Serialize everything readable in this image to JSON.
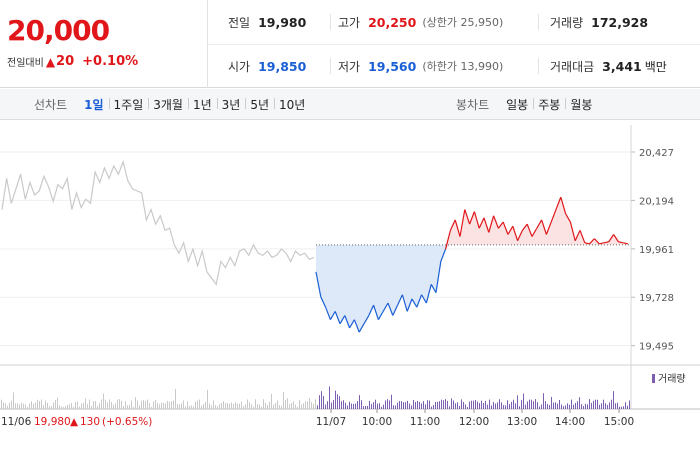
{
  "summary": {
    "price": "20,000",
    "change_label": "전일대비",
    "change_arrow": "▲",
    "change_value": "20",
    "change_pct": "+0.10%",
    "prev_close_label": "전일",
    "prev_close": "19,980",
    "high_label": "고가",
    "high": "20,250",
    "upper_limit_label": "(상한가 25,950)",
    "volume_label": "거래량",
    "volume": "172,928",
    "open_label": "시가",
    "open": "19,850",
    "low_label": "저가",
    "low": "19,560",
    "lower_limit_label": "(하한가 13,990)",
    "amount_label": "거래대금",
    "amount": "3,441",
    "amount_unit": "백만"
  },
  "tabs": {
    "line_label": "선차트",
    "line_items": [
      "1일",
      "1주일",
      "3개월",
      "1년",
      "3년",
      "5년",
      "10년"
    ],
    "line_active": 0,
    "candle_label": "봉차트",
    "candle_items": [
      "일봉",
      "주봉",
      "월봉"
    ]
  },
  "colors": {
    "up": "#e0161a",
    "down": "#1a5fd6",
    "prev_day": "#c9c9c9",
    "up_fill": "#fbe3e4",
    "down_fill": "#dde8f8",
    "volume": "#7d5fb2",
    "volume_prev": "#c9c9c9"
  },
  "chart_data": {
    "type": "line",
    "y_ticks": [
      20427,
      20194,
      19961,
      19728,
      19495
    ],
    "ylim": [
      19450,
      20480
    ],
    "reference_line": 19980,
    "x_ticks": [
      "11/07",
      "10:00",
      "11:00",
      "12:00",
      "13:00",
      "14:00",
      "15:00"
    ],
    "prev_day_label": "11/06",
    "prev_day_info": {
      "close": "19,980",
      "arrow": "▲",
      "change": "130",
      "pct": "(+0.65%)"
    },
    "volume_legend": "거래량",
    "series": [
      {
        "name": "11/06",
        "values": [
          20150,
          20300,
          20180,
          20250,
          20320,
          20200,
          20280,
          20220,
          20240,
          20310,
          20260,
          20190,
          20270,
          20250,
          20300,
          20150,
          20230,
          20160,
          20200,
          20180,
          20330,
          20280,
          20350,
          20300,
          20360,
          20320,
          20380,
          20290,
          20250,
          20240,
          20230,
          20100,
          20150,
          20080,
          20120,
          20050,
          20060,
          19980,
          19940,
          19990,
          19900,
          19960,
          19880,
          19950,
          19850,
          19820,
          19790,
          19900,
          19870,
          19920,
          19880,
          19950,
          19960,
          19930,
          19980,
          19940,
          19930,
          19950,
          19920,
          19930,
          19960,
          19940,
          19900,
          19950,
          19930,
          19940,
          19910,
          19920
        ]
      },
      {
        "name": "11/07",
        "values": [
          19850,
          19730,
          19680,
          19620,
          19660,
          19600,
          19640,
          19580,
          19620,
          19560,
          19600,
          19640,
          19690,
          19620,
          19660,
          19700,
          19640,
          19690,
          19740,
          19660,
          19720,
          19680,
          19740,
          19700,
          19790,
          19750,
          19900,
          19960,
          20050,
          20100,
          20020,
          20150,
          20080,
          20140,
          20060,
          20110,
          20040,
          20120,
          20060,
          20090,
          20030,
          20070,
          20000,
          20050,
          20080,
          20020,
          20060,
          20100,
          20030,
          20090,
          20150,
          20210,
          20130,
          20090,
          20000,
          20050,
          19990,
          19985,
          20010,
          19985,
          19990,
          19995,
          20030,
          19995,
          19990,
          19985
        ]
      }
    ]
  }
}
